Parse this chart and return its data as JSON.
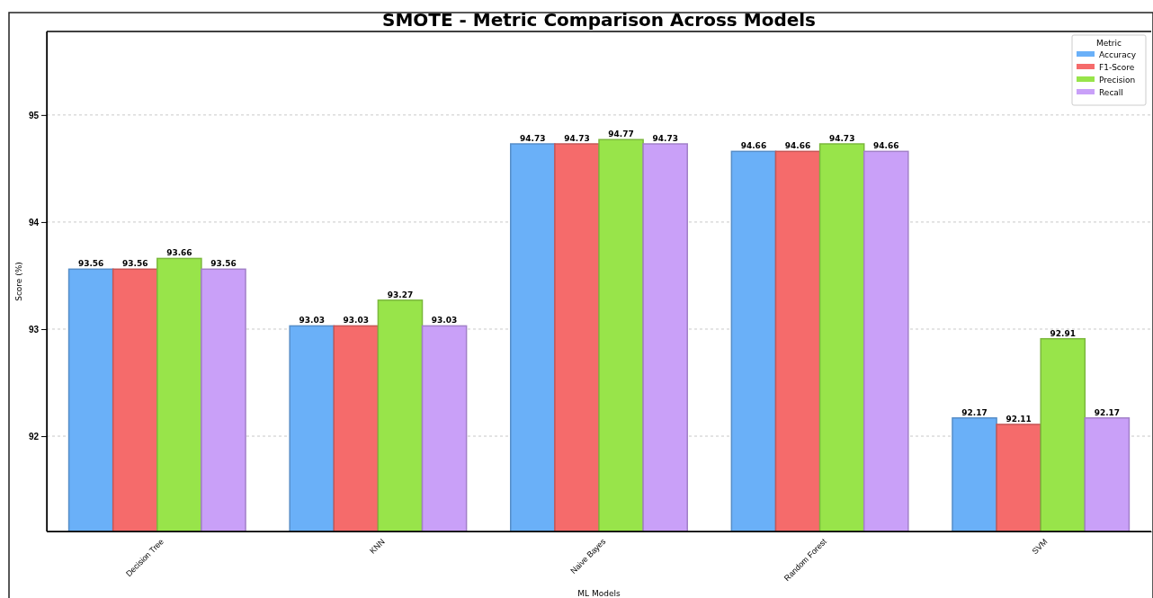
{
  "chart_data": {
    "type": "bar",
    "title": "SMOTE - Metric Comparison Across Models",
    "xlabel": "ML Models",
    "ylabel": "Score (%)",
    "legend_title": "Metric",
    "categories": [
      "Decision Tree",
      "KNN",
      "Naive Bayes",
      "Random Forest",
      "SVM"
    ],
    "series": [
      {
        "name": "Accuracy",
        "color": "#6ab0f8",
        "values": [
          93.56,
          93.03,
          94.73,
          94.66,
          92.17
        ]
      },
      {
        "name": "F1-Score",
        "color": "#f56b6b",
        "values": [
          93.56,
          93.03,
          94.73,
          94.66,
          92.11
        ]
      },
      {
        "name": "Precision",
        "color": "#98e44a",
        "values": [
          93.66,
          93.27,
          94.77,
          94.73,
          92.91
        ]
      },
      {
        "name": "Recall",
        "color": "#c9a0f8",
        "values": [
          93.56,
          93.03,
          94.73,
          94.66,
          92.17
        ]
      }
    ],
    "ylim": [
      91.11,
      95.78
    ],
    "yticks": [
      92,
      93,
      94,
      95
    ],
    "grid": "y",
    "legend": "top right",
    "data_labels": true
  }
}
